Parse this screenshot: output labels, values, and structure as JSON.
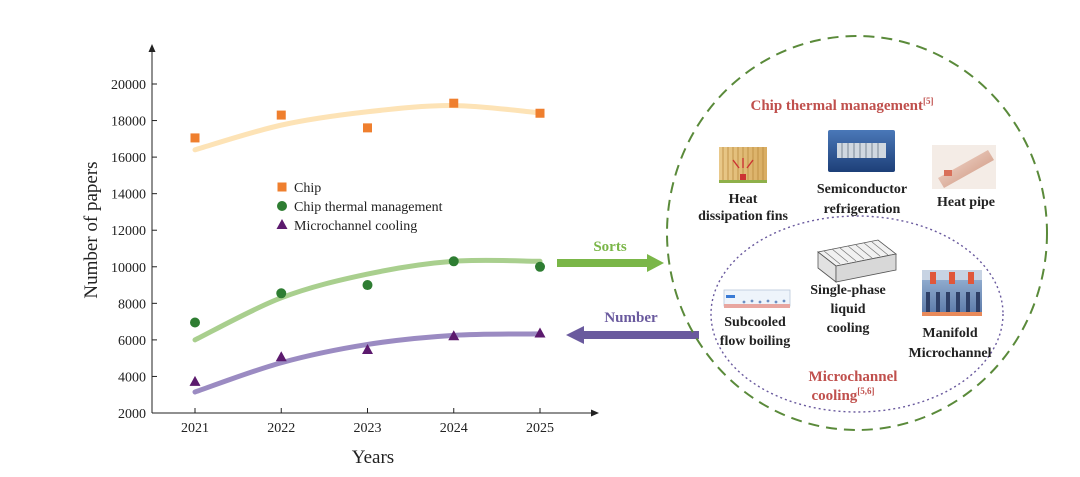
{
  "chart_data": {
    "type": "scatter",
    "title": "",
    "xlabel": "Years",
    "ylabel": "Number of papers",
    "x": [
      2021,
      2022,
      2023,
      2024,
      2025
    ],
    "xlim": [
      2020.5,
      2025.7
    ],
    "ylim": [
      2000,
      21500
    ],
    "yticks": [
      2000,
      4000,
      6000,
      8000,
      10000,
      12000,
      14000,
      16000,
      18000,
      20000
    ],
    "legend_position": "center-left",
    "series": [
      {
        "name": "Chip",
        "marker": "square",
        "color": "#ef7f2e",
        "trend_color": "#fde3b6",
        "values": [
          17050,
          18300,
          17600,
          18950,
          18400
        ],
        "trend": [
          16400,
          17750,
          18480,
          18820,
          18420
        ]
      },
      {
        "name": "Chip thermal management",
        "marker": "circle",
        "color": "#2e7d32",
        "trend_color": "#a9cf8e",
        "values": [
          6950,
          8550,
          9000,
          10300,
          10000
        ],
        "trend": [
          6000,
          8300,
          9600,
          10300,
          10300
        ]
      },
      {
        "name": "Microchannel cooling",
        "marker": "triangle",
        "color": "#5c1a6e",
        "trend_color": "#9b8bc2",
        "values": [
          3700,
          5050,
          5450,
          6200,
          6350
        ],
        "trend": [
          3150,
          4750,
          5750,
          6250,
          6330
        ]
      }
    ]
  },
  "arrows": {
    "sorts": {
      "label": "Sorts",
      "color": "#7ab648"
    },
    "number": {
      "label": "Number",
      "color": "#6a5a9e"
    }
  },
  "outer_group": {
    "title": "Chip thermal management",
    "ref": "[5]",
    "items": [
      {
        "line1": "Heat",
        "line2": "dissipation fins",
        "icon": "heat-sink-fins-icon"
      },
      {
        "line1": "Semiconductor",
        "line2": "refrigeration",
        "icon": "thermoelectric-cooler-icon"
      },
      {
        "line1": "Heat pipe",
        "line2": "",
        "icon": "heat-pipe-icon"
      }
    ]
  },
  "inner_group": {
    "title_line1": "Microchannel",
    "title_line2": "cooling",
    "ref": "[5,6]",
    "items": [
      {
        "line1": "Subcooled",
        "line2": "flow boiling",
        "line3": "",
        "icon": "flow-boiling-icon"
      },
      {
        "line1": "Single-phase",
        "line2": "liquid",
        "line3": "cooling",
        "icon": "single-phase-channel-icon"
      },
      {
        "line1": "Manifold",
        "line2": "Microchannel",
        "line3": "",
        "icon": "manifold-microchannel-icon"
      }
    ]
  }
}
